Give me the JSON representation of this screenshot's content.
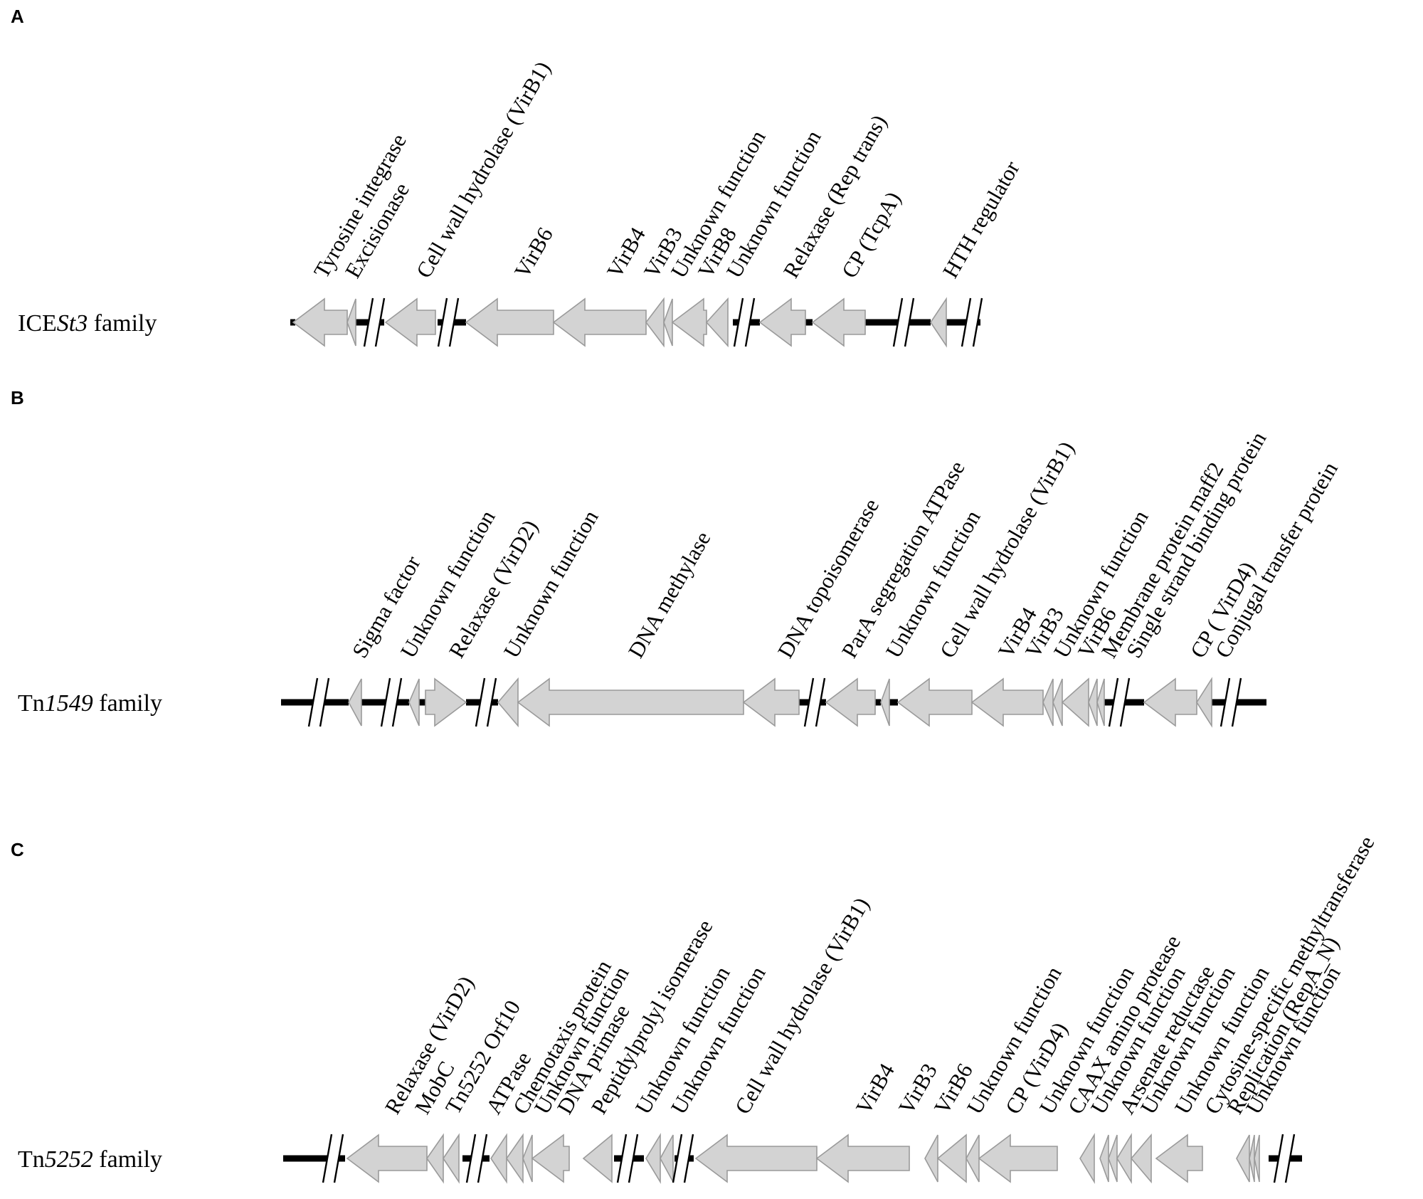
{
  "panels": [
    {
      "id": "A",
      "letter": "A",
      "family_prefix": "ICE",
      "family_italic": "St3",
      "family_suffix": " family",
      "y": 453,
      "letter_y": 32,
      "label_x": 25,
      "backbone": [
        [
          408,
          415
        ],
        [
          500,
          540
        ],
        [
          615,
          655
        ],
        [
          1030,
          1068
        ],
        [
          1132,
          1142
        ],
        [
          1216,
          1308
        ],
        [
          1330,
          1378
        ]
      ],
      "breaks": [
        526,
        630,
        1046,
        1270,
        1366
      ],
      "genes": [
        {
          "name": "Tyrosine integrase",
          "x1": 412,
          "x2": 488,
          "dir": "L",
          "lx": 458
        },
        {
          "name": "Excisionase",
          "x1": 488,
          "x2": 500,
          "dir": "L",
          "lx": 502
        },
        {
          "name": "Cell wall hydrolase (VirB1)",
          "x1": 542,
          "x2": 612,
          "dir": "L",
          "lx": 602
        },
        {
          "name": "VirB6",
          "x1": 655,
          "x2": 778,
          "dir": "L",
          "lx": 740
        },
        {
          "name": "VirB4",
          "x1": 778,
          "x2": 908,
          "dir": "L",
          "lx": 870
        },
        {
          "name": "VirB3",
          "x1": 908,
          "x2": 933,
          "dir": "L",
          "lx": 922
        },
        {
          "name": "Unknown function",
          "x1": 933,
          "x2": 945,
          "dir": "L",
          "lx": 960
        },
        {
          "name": "VirB8",
          "x1": 945,
          "x2": 993,
          "dir": "L",
          "lx": 998
        },
        {
          "name": "Unknown function",
          "x1": 993,
          "x2": 1023,
          "dir": "L",
          "lx": 1038
        },
        {
          "name": "Relaxase (Rep trans)",
          "x1": 1068,
          "x2": 1132,
          "dir": "L",
          "lx": 1118
        },
        {
          "name": "CP  (TcpA)",
          "x1": 1142,
          "x2": 1216,
          "dir": "L",
          "lx": 1200
        },
        {
          "name": "HTH regulator",
          "x1": 1308,
          "x2": 1330,
          "dir": "L",
          "lx": 1342
        }
      ]
    },
    {
      "id": "B",
      "letter": "B",
      "family_prefix": "Tn",
      "family_italic": "1549",
      "family_suffix": " family",
      "y": 987,
      "letter_y": 568,
      "label_x": 25,
      "backbone": [
        [
          395,
          490
        ],
        [
          508,
          575
        ],
        [
          589,
          598
        ],
        [
          655,
          700
        ],
        [
          1123,
          1161
        ],
        [
          1230,
          1238
        ],
        [
          1250,
          1262
        ],
        [
          1552,
          1608
        ],
        [
          1703,
          1780
        ]
      ],
      "breaks": [
        448,
        550,
        683,
        1145,
        1573,
        1730
      ],
      "genes": [
        {
          "name": "Sigma factor",
          "x1": 490,
          "x2": 508,
          "dir": "L",
          "lx": 512
        },
        {
          "name": "Unknown function",
          "x1": 575,
          "x2": 589,
          "dir": "L",
          "lx": 580
        },
        {
          "name": "Relaxase (VirD2)",
          "x1": 598,
          "x2": 655,
          "dir": "R",
          "lx": 648
        },
        {
          "name": "Unknown function",
          "x1": 700,
          "x2": 728,
          "dir": "L",
          "lx": 725
        },
        {
          "name": "DNA methylase",
          "x1": 728,
          "x2": 1045,
          "dir": "L",
          "lx": 900
        },
        {
          "name": "DNA topoisomerase",
          "x1": 1045,
          "x2": 1123,
          "dir": "L",
          "lx": 1110
        },
        {
          "name": "ParA segregation ATPase",
          "x1": 1161,
          "x2": 1230,
          "dir": "L",
          "lx": 1200
        },
        {
          "name": "Unknown function",
          "x1": 1238,
          "x2": 1250,
          "dir": "L",
          "lx": 1262
        },
        {
          "name": "Cell wall hydrolase (VirB1)",
          "x1": 1262,
          "x2": 1366,
          "dir": "L",
          "lx": 1338
        },
        {
          "name": "VirB4",
          "x1": 1366,
          "x2": 1466,
          "dir": "L",
          "lx": 1420
        },
        {
          "name": "VirB3",
          "x1": 1466,
          "x2": 1480,
          "dir": "L",
          "lx": 1458
        },
        {
          "name": "Unknown function",
          "x1": 1480,
          "x2": 1493,
          "dir": "L",
          "lx": 1498
        },
        {
          "name": "VirB6",
          "x1": 1493,
          "x2": 1530,
          "dir": "L",
          "lx": 1532
        },
        {
          "name": "Membrane protein maff2",
          "x1": 1530,
          "x2": 1542,
          "dir": "L",
          "lx": 1565
        },
        {
          "name": "Single strand binding protein",
          "x1": 1542,
          "x2": 1552,
          "dir": "L",
          "lx": 1600
        },
        {
          "name": "CP ( VirD4)",
          "x1": 1608,
          "x2": 1682,
          "dir": "L",
          "lx": 1690
        },
        {
          "name": "Conjugal transfer protein",
          "x1": 1682,
          "x2": 1703,
          "dir": "L",
          "lx": 1725
        }
      ]
    },
    {
      "id": "C",
      "letter": "C",
      "family_prefix": "Tn",
      "family_italic": "5252",
      "family_suffix": " family",
      "y": 1628,
      "letter_y": 1203,
      "label_x": 25,
      "backbone": [
        [
          398,
          485
        ],
        [
          650,
          688
        ],
        [
          863,
          905
        ],
        [
          948,
          975
        ],
        [
          1783,
          1830
        ]
      ],
      "breaks": [
        468,
        670,
        882,
        960,
        1805
      ],
      "genes": [
        {
          "name": "Relaxase  (VirD2)",
          "x1": 488,
          "x2": 600,
          "dir": "L",
          "lx": 558
        },
        {
          "name": "MobC",
          "x1": 600,
          "x2": 623,
          "dir": "L",
          "lx": 600
        },
        {
          "name": "Tn5252 Orf10",
          "x1": 623,
          "x2": 645,
          "dir": "L",
          "lx": 643
        },
        {
          "name": "ATPase",
          "x1": 690,
          "x2": 712,
          "dir": "L",
          "lx": 700
        },
        {
          "name": "Chemotaxis protein",
          "x1": 712,
          "x2": 735,
          "dir": "L",
          "lx": 738
        },
        {
          "name": "Unknown function",
          "x1": 735,
          "x2": 748,
          "dir": "L",
          "lx": 768
        },
        {
          "name": "DNA primase",
          "x1": 748,
          "x2": 800,
          "dir": "L",
          "lx": 800
        },
        {
          "name": "Peptidylprolyl isomerase",
          "x1": 820,
          "x2": 860,
          "dir": "L",
          "lx": 848
        },
        {
          "name": "Unknown function",
          "x1": 908,
          "x2": 928,
          "dir": "L",
          "lx": 910
        },
        {
          "name": "Unknown function",
          "x1": 928,
          "x2": 946,
          "dir": "L",
          "lx": 960
        },
        {
          "name": "Cell wall hydrolase  (VirB1)",
          "x1": 978,
          "x2": 1148,
          "dir": "L",
          "lx": 1050
        },
        {
          "name": "VirB4",
          "x1": 1148,
          "x2": 1278,
          "dir": "L",
          "lx": 1220
        },
        {
          "name": "VirB3",
          "x1": 1300,
          "x2": 1318,
          "dir": "L",
          "lx": 1280
        },
        {
          "name": "VirB6",
          "x1": 1318,
          "x2": 1358,
          "dir": "L",
          "lx": 1330
        },
        {
          "name": "Unknown function",
          "x1": 1358,
          "x2": 1376,
          "dir": "L",
          "lx": 1376
        },
        {
          "name": "CP (VirD4)",
          "x1": 1376,
          "x2": 1486,
          "dir": "L",
          "lx": 1430
        },
        {
          "name": "Unknown function",
          "x1": 1518,
          "x2": 1538,
          "dir": "L",
          "lx": 1478
        },
        {
          "name": "CAAX amino protease",
          "x1": 1546,
          "x2": 1558,
          "dir": "L",
          "lx": 1518
        },
        {
          "name": "Unknown function",
          "x1": 1558,
          "x2": 1570,
          "dir": "L",
          "lx": 1550
        },
        {
          "name": "Arsenate reductase",
          "x1": 1570,
          "x2": 1590,
          "dir": "L",
          "lx": 1590
        },
        {
          "name": "Unknown function",
          "x1": 1590,
          "x2": 1618,
          "dir": "L",
          "lx": 1620
        },
        {
          "name": "Unknown function",
          "x1": 1625,
          "x2": 1690,
          "dir": "L",
          "lx": 1668
        },
        {
          "name": "Cytosine-specific methyltransferase",
          "x1": 1738,
          "x2": 1756,
          "dir": "L",
          "lx": 1710
        },
        {
          "name": "Replication (RepA_N)",
          "x1": 1756,
          "x2": 1763,
          "dir": "L",
          "lx": 1742
        },
        {
          "name": "Unknown function",
          "x1": 1763,
          "x2": 1770,
          "dir": "L",
          "lx": 1768
        }
      ]
    }
  ]
}
